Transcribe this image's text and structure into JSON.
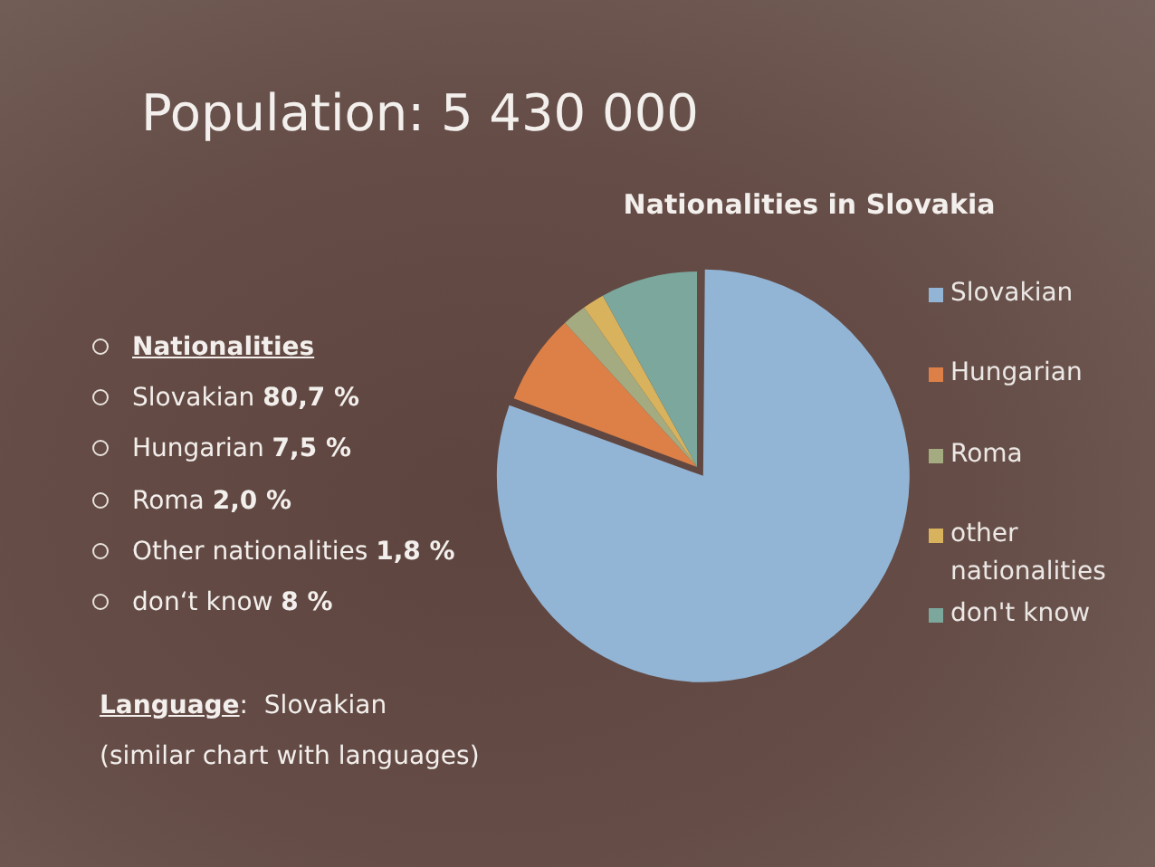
{
  "chart_data": {
    "type": "pie",
    "title": "Nationalities in Slovakia",
    "categories": [
      "Slovakian",
      "Hungarian",
      "Roma",
      "other nationalities",
      "don't know"
    ],
    "values": [
      80.7,
      7.5,
      2.0,
      1.8,
      8
    ],
    "colors": [
      "#93b5d5",
      "#dd8047",
      "#a5ab81",
      "#d8b25c",
      "#7ba79d"
    ],
    "legend": "right",
    "annotations": [
      "Population: 5 430 000",
      "Nationalities",
      "Slovakian 80,7 %",
      "Hungarian 7,5 %",
      "Roma 2,0 %",
      "Other nationalities 1,8 %",
      "don‘t know 8 %",
      "Language:  Slovakian",
      "(similar chart with languages)"
    ]
  }
}
